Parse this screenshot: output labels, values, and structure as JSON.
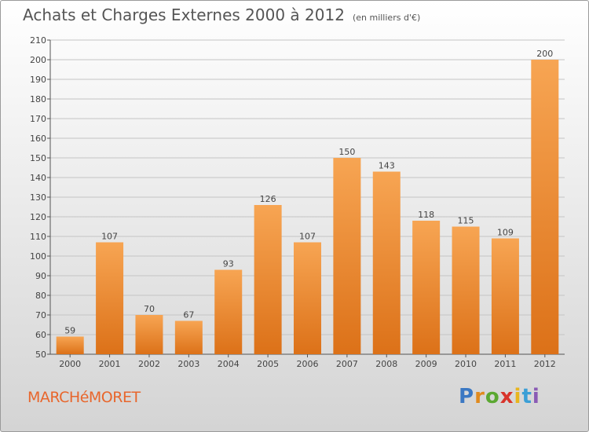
{
  "chart_data": {
    "type": "bar",
    "title": "Achats et Charges Externes 2000 à 2012",
    "subtitle": "(en milliers d'€)",
    "categories": [
      "2000",
      "2001",
      "2002",
      "2003",
      "2004",
      "2005",
      "2006",
      "2007",
      "2008",
      "2009",
      "2010",
      "2011",
      "2012"
    ],
    "values": [
      59,
      107,
      70,
      67,
      93,
      126,
      107,
      150,
      143,
      118,
      115,
      109,
      200
    ],
    "ylim": [
      50,
      210
    ],
    "yticks": [
      50,
      60,
      70,
      80,
      90,
      100,
      110,
      120,
      130,
      140,
      150,
      160,
      170,
      180,
      190,
      200,
      210
    ],
    "grid": true,
    "bar_color": "#f0923a"
  },
  "footer": {
    "commune": "MARCHéMORET",
    "brand": "Proxiti"
  }
}
